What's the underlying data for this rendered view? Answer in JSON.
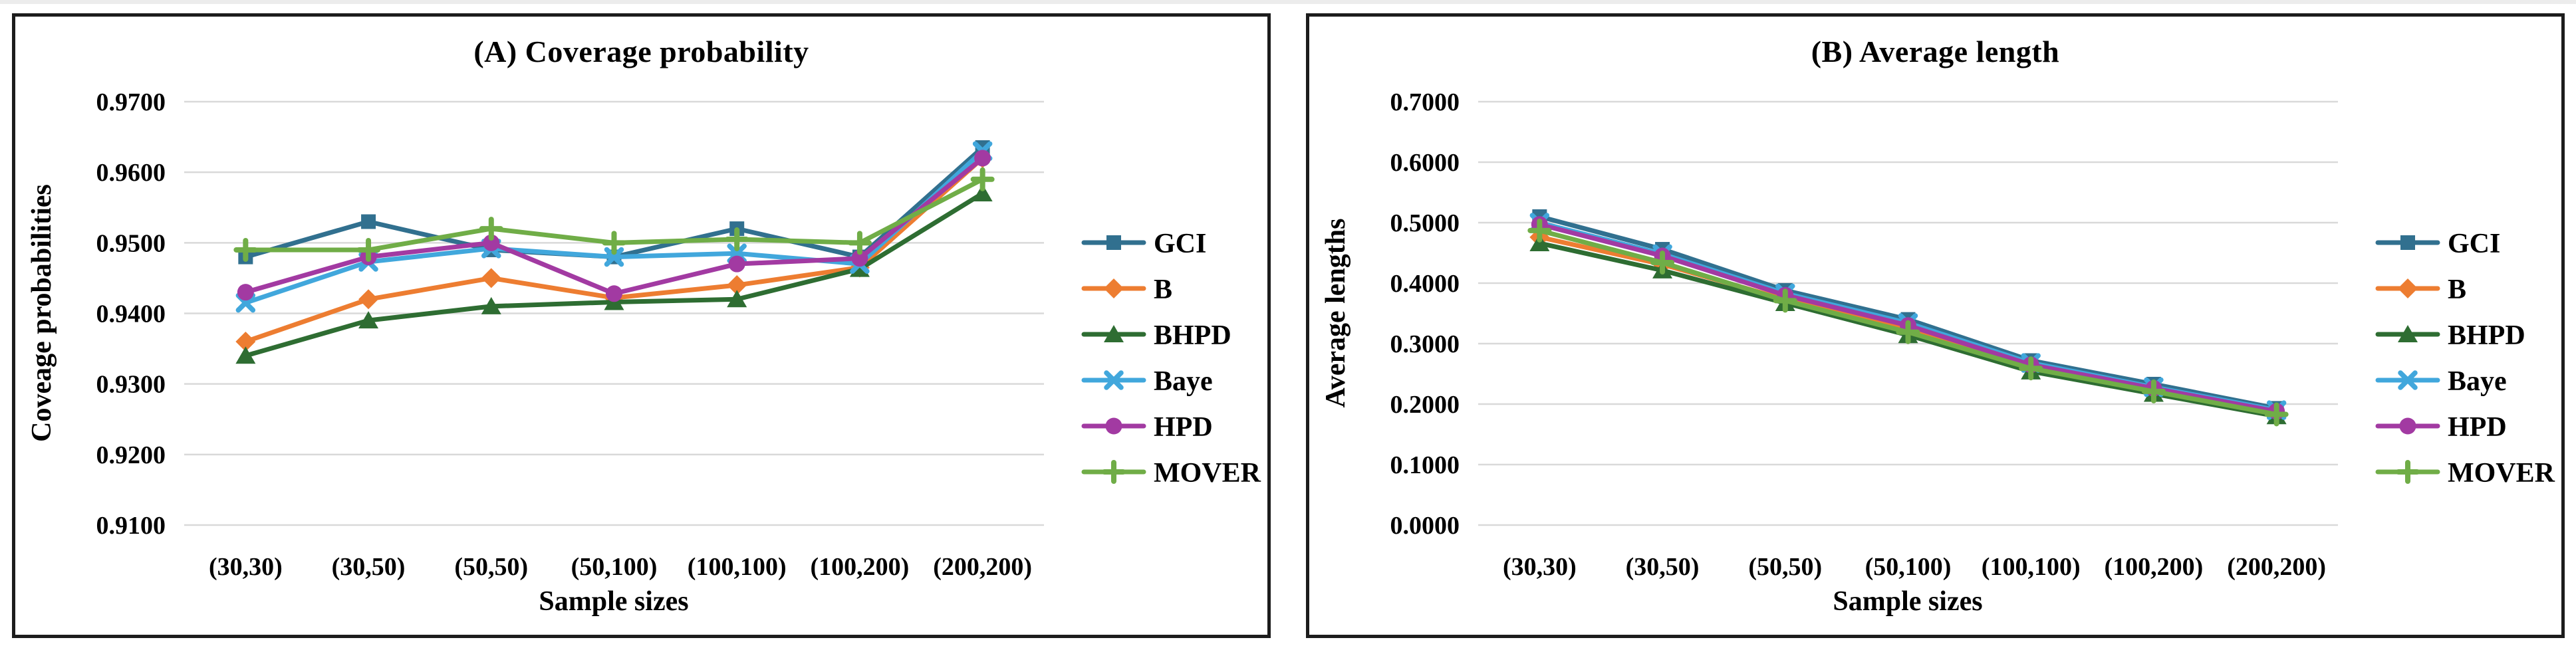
{
  "figure": {
    "background": "#ffffff",
    "panel_border_color": "#1c1c1c",
    "gridline_color": "#d9d9d9",
    "text_color": "#000000"
  },
  "chart_data": [
    {
      "id": "A",
      "type": "line",
      "title": "(A) Coverage probability",
      "xlabel": "Sample sizes",
      "ylabel": "Coveage probabilities",
      "categories": [
        "(30,30)",
        "(30,50)",
        "(50,50)",
        "(50,100)",
        "(100,100)",
        "(100,200)",
        "(200,200)"
      ],
      "ylim": [
        0.91,
        0.97
      ],
      "ytick_labels": [
        "0.9700",
        "0.9600",
        "0.9500",
        "0.9400",
        "0.9300",
        "0.9200",
        "0.9100"
      ],
      "ytick_values": [
        0.97,
        0.96,
        0.95,
        0.94,
        0.93,
        0.92,
        0.91
      ],
      "grid": true,
      "legend_position": "right",
      "series": [
        {
          "name": "GCI",
          "color": "#31708F",
          "marker": "square",
          "values": [
            0.948,
            0.953,
            0.949,
            0.948,
            0.952,
            0.948,
            0.9635
          ]
        },
        {
          "name": "B",
          "color": "#ED7D31",
          "marker": "diamond",
          "values": [
            0.936,
            0.942,
            0.945,
            0.9422,
            0.944,
            0.9465,
            0.962
          ]
        },
        {
          "name": "BHPD",
          "color": "#2E6D32",
          "marker": "triangle",
          "values": [
            0.934,
            0.939,
            0.941,
            0.9416,
            0.942,
            0.9463,
            0.957
          ]
        },
        {
          "name": "Baye",
          "color": "#41A7DC",
          "marker": "x",
          "values": [
            0.9415,
            0.9473,
            0.9492,
            0.948,
            0.9485,
            0.947,
            0.963
          ]
        },
        {
          "name": "HPD",
          "color": "#A23AA2",
          "marker": "circle",
          "values": [
            0.943,
            0.948,
            0.95,
            0.9428,
            0.947,
            0.9478,
            0.962
          ]
        },
        {
          "name": "MOVER",
          "color": "#70AD47",
          "marker": "plus",
          "values": [
            0.949,
            0.949,
            0.952,
            0.95,
            0.9505,
            0.95,
            0.959
          ]
        }
      ]
    },
    {
      "id": "B",
      "type": "line",
      "title": "(B) Average length",
      "xlabel": "Sample sizes",
      "ylabel": "Average lengths",
      "categories": [
        "(30,30)",
        "(30,50)",
        "(50,50)",
        "(50,100)",
        "(100,100)",
        "(100,200)",
        "(200,200)"
      ],
      "ylim": [
        0.0,
        0.7
      ],
      "ytick_labels": [
        "0.7000",
        "0.6000",
        "0.5000",
        "0.4000",
        "0.3000",
        "0.2000",
        "0.1000",
        "0.0000"
      ],
      "ytick_values": [
        0.7,
        0.6,
        0.5,
        0.4,
        0.3,
        0.2,
        0.1,
        0.0
      ],
      "grid": true,
      "legend_position": "right",
      "series": [
        {
          "name": "GCI",
          "color": "#31708F",
          "marker": "square",
          "values": [
            0.51,
            0.456,
            0.388,
            0.34,
            0.272,
            0.233,
            0.193
          ]
        },
        {
          "name": "B",
          "color": "#ED7D31",
          "marker": "diamond",
          "values": [
            0.476,
            0.431,
            0.373,
            0.325,
            0.262,
            0.224,
            0.185
          ]
        },
        {
          "name": "BHPD",
          "color": "#2E6D32",
          "marker": "triangle",
          "values": [
            0.466,
            0.421,
            0.367,
            0.314,
            0.254,
            0.217,
            0.18
          ]
        },
        {
          "name": "Baye",
          "color": "#41A7DC",
          "marker": "x",
          "values": [
            0.5,
            0.448,
            0.383,
            0.334,
            0.268,
            0.228,
            0.19
          ]
        },
        {
          "name": "HPD",
          "color": "#A23AA2",
          "marker": "circle",
          "values": [
            0.497,
            0.445,
            0.38,
            0.33,
            0.265,
            0.226,
            0.188
          ]
        },
        {
          "name": "MOVER",
          "color": "#70AD47",
          "marker": "plus",
          "values": [
            0.487,
            0.434,
            0.371,
            0.319,
            0.259,
            0.221,
            0.183
          ]
        }
      ]
    }
  ]
}
